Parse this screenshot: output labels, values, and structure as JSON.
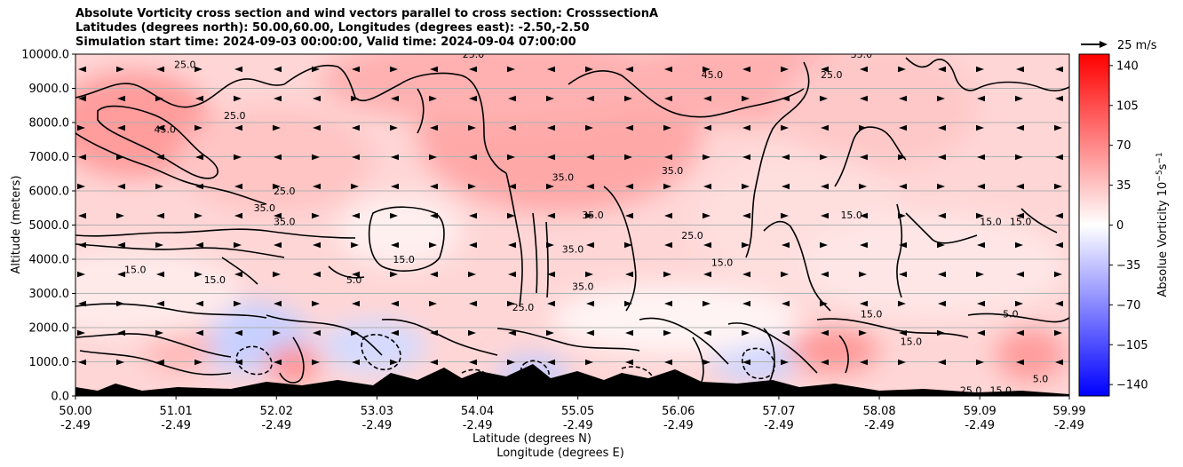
{
  "chart_data": {
    "type": "heatmap",
    "title_lines": [
      "Absolute Vorticity cross section and wind vectors parallel to cross section: CrosssectionA",
      "Latitudes (degrees north): 50.00,60.00, Longitudes (degrees east): -2.50,-2.50",
      "Simulation start time: 2024-09-03 00:00:00, Valid time: 2024-09-04 07:00:00"
    ],
    "xlabel_lat": "Latitude (degrees N)",
    "xlabel_lon": "Longitude (degrees E)",
    "ylabel": "Altitude (meters)",
    "xlim": [
      50.0,
      59.99
    ],
    "ylim": [
      0,
      10000
    ],
    "x_ticks": [
      {
        "lat": "50.00",
        "lon": "-2.49"
      },
      {
        "lat": "51.01",
        "lon": "-2.49"
      },
      {
        "lat": "52.02",
        "lon": "-2.49"
      },
      {
        "lat": "53.03",
        "lon": "-2.49"
      },
      {
        "lat": "54.04",
        "lon": "-2.49"
      },
      {
        "lat": "55.05",
        "lon": "-2.49"
      },
      {
        "lat": "56.06",
        "lon": "-2.49"
      },
      {
        "lat": "57.07",
        "lon": "-2.49"
      },
      {
        "lat": "58.08",
        "lon": "-2.49"
      },
      {
        "lat": "59.09",
        "lon": "-2.49"
      },
      {
        "lat": "59.99",
        "lon": "-2.49"
      }
    ],
    "y_ticks": [
      "0.0",
      "1000.0",
      "2000.0",
      "3000.0",
      "4000.0",
      "5000.0",
      "6000.0",
      "7000.0",
      "8000.0",
      "9000.0",
      "10000.0"
    ],
    "grid": true,
    "colorbar": {
      "label_html": "Absolue Vorticity 10<tspan baseline-shift=\"super\" font-size=\"9\">−5</tspan>s<tspan baseline-shift=\"super\" font-size=\"9\">−1</tspan>",
      "ticks": [
        "140",
        "105",
        "70",
        "35",
        "0",
        "−35",
        "−70",
        "−105",
        "−140"
      ],
      "range": [
        -150,
        150
      ],
      "colors": {
        "min": "#0000ff",
        "mid": "#ffffff",
        "max": "#ff0000"
      }
    },
    "quiver_key": "25 m/s",
    "contour_labels": [
      {
        "text": "25.0",
        "x": 51.1,
        "y": 9600
      },
      {
        "text": "25.0",
        "x": 51.6,
        "y": 8100
      },
      {
        "text": "45.0",
        "x": 50.9,
        "y": 7700
      },
      {
        "text": "25.0",
        "x": 52.1,
        "y": 5900
      },
      {
        "text": "35.0",
        "x": 51.9,
        "y": 5400
      },
      {
        "text": "35.0",
        "x": 52.1,
        "y": 5000
      },
      {
        "text": "15.0",
        "x": 50.6,
        "y": 3600
      },
      {
        "text": "15.0",
        "x": 51.4,
        "y": 3300
      },
      {
        "text": "5.0",
        "x": 52.8,
        "y": 3300
      },
      {
        "text": "15.0",
        "x": 53.3,
        "y": 3900
      },
      {
        "text": "35.0",
        "x": 54.9,
        "y": 6300
      },
      {
        "text": "35.0",
        "x": 56.0,
        "y": 6500
      },
      {
        "text": "35.0",
        "x": 55.2,
        "y": 5200
      },
      {
        "text": "25.0",
        "x": 56.2,
        "y": 4600
      },
      {
        "text": "35.0",
        "x": 55.0,
        "y": 4200
      },
      {
        "text": "25.0",
        "x": 54.5,
        "y": 2500
      },
      {
        "text": "35.0",
        "x": 55.1,
        "y": 3100
      },
      {
        "text": "15.0",
        "x": 56.5,
        "y": 3800
      },
      {
        "text": "45.0",
        "x": 56.4,
        "y": 9300
      },
      {
        "text": "35.0",
        "x": 57.9,
        "y": 9900
      },
      {
        "text": "25.0",
        "x": 57.6,
        "y": 9300
      },
      {
        "text": "15.0",
        "x": 57.8,
        "y": 5200
      },
      {
        "text": "15.0",
        "x": 59.2,
        "y": 5000
      },
      {
        "text": "15.0",
        "x": 59.5,
        "y": 5000
      },
      {
        "text": "15.0",
        "x": 58.0,
        "y": 2300
      },
      {
        "text": "5.0",
        "x": 59.4,
        "y": 2300
      },
      {
        "text": "25.0",
        "x": 54.0,
        "y": 9900
      },
      {
        "text": "15.0",
        "x": 58.4,
        "y": 1500
      },
      {
        "text": "25.0",
        "x": 59.0,
        "y": 60
      },
      {
        "text": "15.0",
        "x": 59.3,
        "y": 60
      },
      {
        "text": "5.0",
        "x": 59.7,
        "y": 400
      }
    ]
  }
}
